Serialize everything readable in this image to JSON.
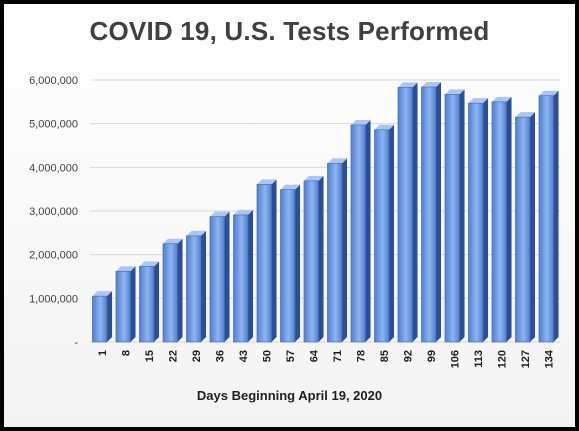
{
  "chart_data": {
    "type": "bar",
    "title": "COVID 19, U.S. Tests Performed",
    "xlabel": "Days Beginning April 19, 2020",
    "ylabel": "",
    "categories": [
      "1",
      "8",
      "15",
      "22",
      "29",
      "36",
      "43",
      "50",
      "57",
      "64",
      "71",
      "78",
      "85",
      "92",
      "99",
      "106",
      "113",
      "120",
      "127",
      "134"
    ],
    "values": [
      1050000,
      1620000,
      1730000,
      2250000,
      2430000,
      2870000,
      2910000,
      3610000,
      3490000,
      3690000,
      4090000,
      4970000,
      4860000,
      5830000,
      5840000,
      5670000,
      5470000,
      5500000,
      5150000,
      5640000
    ],
    "ylim": [
      0,
      6000000
    ],
    "yticks": [
      "-",
      "1,000,000",
      "2,000,000",
      "3,000,000",
      "4,000,000",
      "5,000,000",
      "6,000,000"
    ],
    "grid": true,
    "legend": "none",
    "colors": {
      "bar_front_top": "#8fb4f0",
      "bar_front_bottom": "#4f7fd0",
      "bar_side": "#2c4f94",
      "bar_top": "#a9c6f5",
      "grid": "#d9d9d9"
    }
  }
}
